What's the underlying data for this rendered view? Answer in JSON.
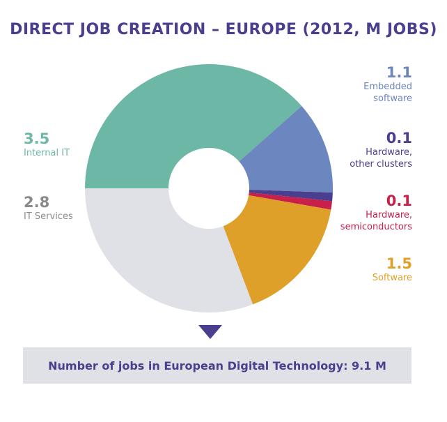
{
  "title": "DIRECT JOB CREATION – EUROPE (2012, M JOBS)",
  "summary": "Number of jobs in European Digital Technology: 9.1 M",
  "chart_data": {
    "type": "pie",
    "title": "DIRECT JOB CREATION – EUROPE (2012, M JOBS)",
    "donut": true,
    "slices": [
      {
        "label": "Internal IT",
        "value": 3.5,
        "value_label": "3.5",
        "color": "#6cb7a6"
      },
      {
        "label": "Embedded software",
        "value": 1.1,
        "value_label": "1.1",
        "color": "#6c86c0"
      },
      {
        "label": "Hardware, other clusters",
        "value": 0.1,
        "value_label": "0.1",
        "color": "#4a3f8f"
      },
      {
        "label": "Hardware, semiconductors",
        "value": 0.1,
        "value_label": "0.1",
        "color": "#c8204a"
      },
      {
        "label": "Software",
        "value": 1.5,
        "value_label": "1.5",
        "color": "#dfa02a"
      },
      {
        "label": "IT Services",
        "value": 2.8,
        "value_label": "2.8",
        "color": "#dfe1e6"
      }
    ],
    "total_label": "9.1 M"
  },
  "labels": {
    "embedded": {
      "value": "1.1",
      "line1": "Embedded",
      "line2": "software",
      "color": "#6c86c0"
    },
    "hw_other": {
      "value": "0.1",
      "line1": "Hardware,",
      "line2": "other clusters",
      "color": "#4a3f8f"
    },
    "hw_semi": {
      "value": "0.1",
      "line1": "Hardware,",
      "line2": "semiconductors",
      "color": "#c8204a"
    },
    "software": {
      "value": "1.5",
      "line1": "Software",
      "color": "#dfa02a"
    },
    "internal_it": {
      "value": "3.5",
      "line1": "Internal IT",
      "color": "#6cb7a6"
    },
    "it_services": {
      "value": "2.8",
      "line1": "IT Services",
      "color": "#8a8a8a"
    }
  }
}
